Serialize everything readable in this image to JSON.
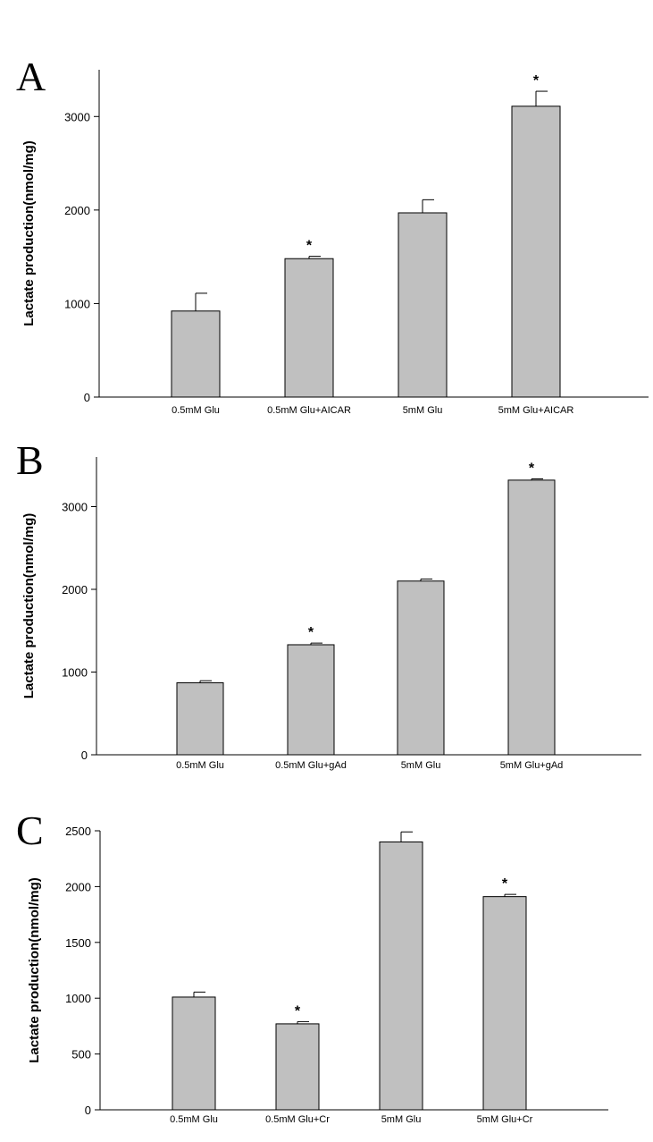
{
  "chart_data": [
    {
      "panel": "A",
      "type": "bar",
      "ylabel": "Lactate production(nmol/mg)",
      "ylim": [
        0,
        3500
      ],
      "yticks": [
        0,
        1000,
        2000,
        3000
      ],
      "categories": [
        "0.5mM Glu",
        "0.5mM Glu+AICAR",
        "5mM Glu",
        "5mM Glu+AICAR"
      ],
      "values": [
        920,
        1480,
        1970,
        3110
      ],
      "errors": [
        190,
        25,
        140,
        160
      ],
      "significance": [
        "",
        "*",
        "",
        "*"
      ],
      "grid": false
    },
    {
      "panel": "B",
      "type": "bar",
      "ylabel": "Lactate production(nmol/mg)",
      "ylim": [
        0,
        3600
      ],
      "yticks": [
        0,
        1000,
        2000,
        3000
      ],
      "categories": [
        "0.5mM Glu",
        "0.5mM Glu+gAd",
        "5mM Glu",
        "5mM Glu+gAd"
      ],
      "values": [
        870,
        1330,
        2100,
        3320
      ],
      "errors": [
        25,
        20,
        25,
        15
      ],
      "significance": [
        "",
        "*",
        "",
        "*"
      ],
      "grid": false
    },
    {
      "panel": "C",
      "type": "bar",
      "ylabel": "Lactate production(nmol/mg)",
      "ylim": [
        0,
        2500
      ],
      "yticks": [
        0,
        500,
        1000,
        1500,
        2000,
        2500
      ],
      "categories": [
        "0.5mM Glu",
        "0.5mM Glu+Cr",
        "5mM Glu",
        "5mM Glu+Cr"
      ],
      "values": [
        1010,
        770,
        2400,
        1910
      ],
      "errors": [
        45,
        20,
        90,
        20
      ],
      "significance": [
        "",
        "*",
        "",
        "*"
      ],
      "grid": false
    }
  ]
}
